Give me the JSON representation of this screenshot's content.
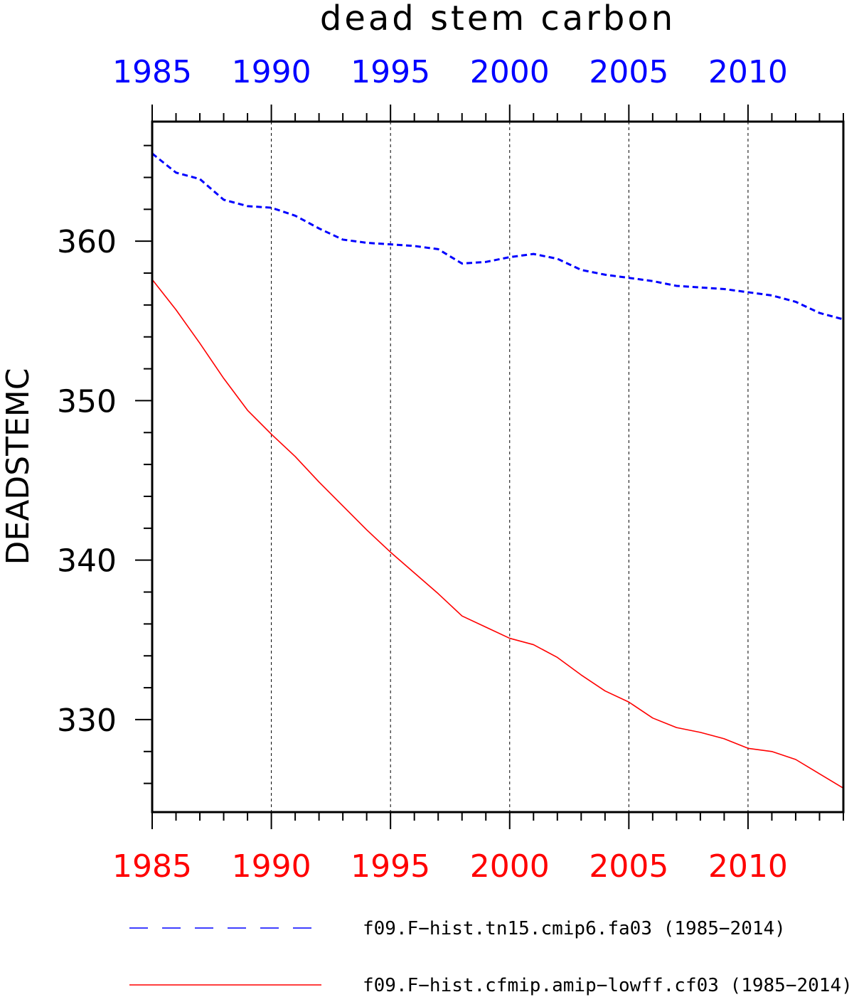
{
  "chart_data": {
    "type": "line",
    "title": "dead stem carbon",
    "ylabel": "DEADSTEMC",
    "xlim": [
      1985,
      2014
    ],
    "ylim": [
      324.2,
      367.5
    ],
    "y_major_ticks": [
      330,
      340,
      350,
      360
    ],
    "y_minor_step": 2,
    "x_major_ticks": [
      1985,
      1990,
      1995,
      2000,
      2005,
      2010
    ],
    "x_minor_step": 1,
    "grid": "vertical dashed at major x ticks",
    "top_axis_color": "#0000ff",
    "bottom_axis_color": "#ff0000",
    "legend_position": "bottom",
    "x": [
      1985,
      1986,
      1987,
      1988,
      1989,
      1990,
      1991,
      1992,
      1993,
      1994,
      1995,
      1996,
      1997,
      1998,
      1999,
      2000,
      2001,
      2002,
      2003,
      2004,
      2005,
      2006,
      2007,
      2008,
      2009,
      2010,
      2011,
      2012,
      2013,
      2014
    ],
    "series": [
      {
        "name": "f09.F−hist.tn15.cmip6.fa03 (1985−2014)",
        "color": "#0000ff",
        "dash": "dashed",
        "values": [
          365.5,
          364.3,
          363.9,
          362.6,
          362.2,
          362.1,
          361.6,
          360.8,
          360.1,
          359.9,
          359.8,
          359.7,
          359.5,
          358.6,
          358.7,
          359.0,
          359.2,
          358.9,
          358.2,
          357.9,
          357.7,
          357.5,
          357.2,
          357.1,
          357.0,
          356.8,
          356.6,
          356.2,
          355.5,
          355.1
        ]
      },
      {
        "name": "f09.F−hist.cfmip.amip−lowff.cf03 (1985−2014)",
        "color": "#ff0000",
        "dash": "solid",
        "values": [
          357.6,
          355.7,
          353.6,
          351.4,
          349.4,
          347.9,
          346.5,
          344.9,
          343.4,
          341.9,
          340.5,
          339.2,
          337.9,
          336.5,
          335.8,
          335.1,
          334.7,
          333.9,
          332.8,
          331.8,
          331.1,
          330.1,
          329.5,
          329.2,
          328.8,
          328.2,
          328.0,
          327.5,
          326.6,
          325.7
        ]
      }
    ]
  }
}
